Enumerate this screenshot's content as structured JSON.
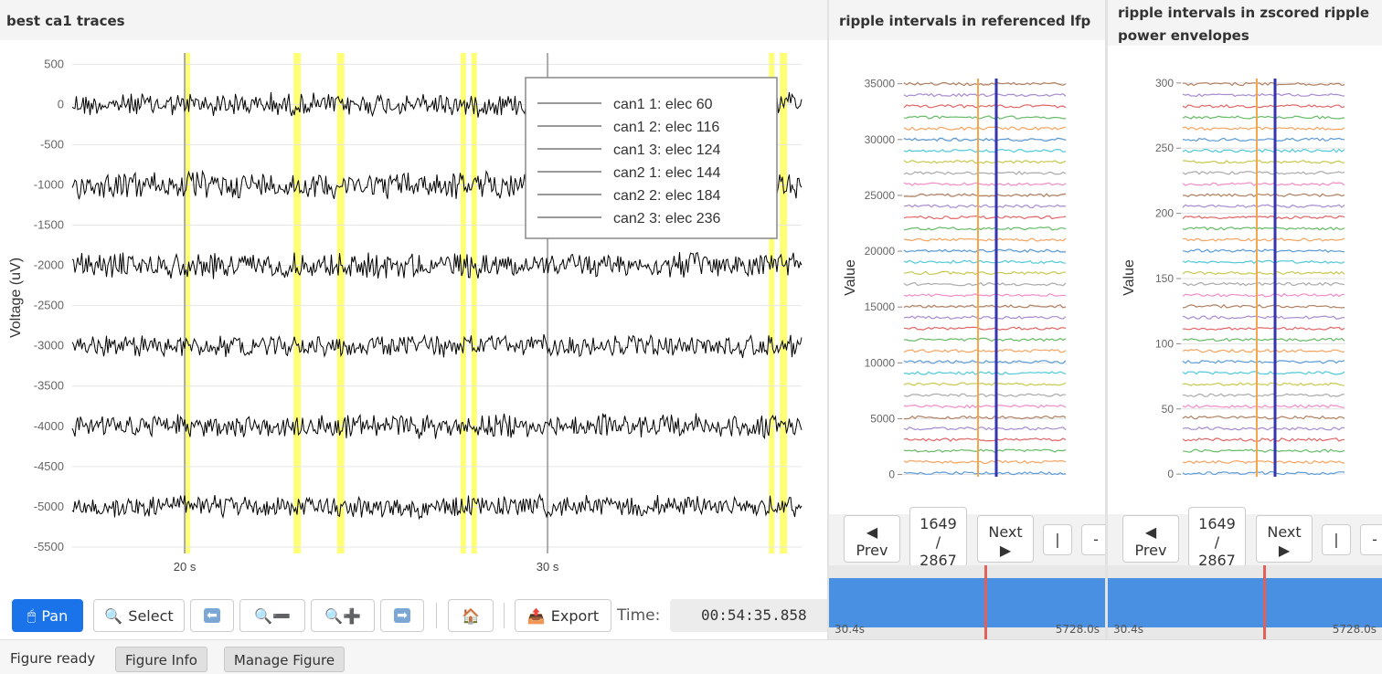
{
  "main_panel": {
    "title": "best ca1 traces",
    "chart_data": {
      "type": "line",
      "ylabel": "Voltage (uV)",
      "y_ticks": [
        500,
        0,
        -500,
        -1000,
        -1500,
        -2000,
        -2500,
        -3000,
        -3500,
        -4000,
        -4500,
        -5000,
        -5500
      ],
      "x_ticks": [
        {
          "value": 20,
          "label": "20 s"
        },
        {
          "value": 30,
          "label": "30 s"
        }
      ],
      "xlim": [
        16.9,
        37.0
      ],
      "ylim": [
        -5580,
        640
      ],
      "series": [
        {
          "name": "can1 1: elec 60",
          "offset": 0
        },
        {
          "name": "can1 2: elec 116",
          "offset": -1000
        },
        {
          "name": "can1 3: elec 124",
          "offset": -2000
        },
        {
          "name": "can2 1: elec 144",
          "offset": -3000
        },
        {
          "name": "can2 2: elec 184",
          "offset": -4000
        },
        {
          "name": "can2 3: elec 236",
          "offset": -5000
        }
      ],
      "highlight_intervals": [
        [
          20.0,
          20.15
        ],
        [
          23.0,
          23.2
        ],
        [
          24.2,
          24.4
        ],
        [
          27.6,
          27.7
        ],
        [
          27.9,
          28.0
        ],
        [
          36.1,
          36.2
        ],
        [
          36.4,
          36.6
        ]
      ],
      "cursor_lines": [
        20.0,
        30.0
      ],
      "legend_position": "top-right"
    }
  },
  "toolbar": {
    "pan_label": "Pan",
    "select_label": "Select",
    "export_label": "Export",
    "time_label": "Time:",
    "time_value": "00:54:35.858"
  },
  "statusbar": {
    "status_text": "Figure ready",
    "figure_info_label": "Figure Info",
    "manage_figure_label": "Manage Figure"
  },
  "ripple_lfp": {
    "title": "ripple intervals in referenced lfp",
    "chart_data": {
      "type": "line",
      "ylabel": "Value",
      "y_ticks": [
        35000,
        30000,
        25000,
        20000,
        15000,
        10000,
        5000,
        0
      ],
      "ylim": [
        -200,
        35300
      ],
      "trace_count": 36
    },
    "nav": {
      "prev_label": "Prev",
      "counter": "1649 / 2867",
      "next_label": "Next"
    },
    "timeline": {
      "start_label": "30.4s",
      "end_label": "5728.0s",
      "position": 0.297
    }
  },
  "ripple_zscored": {
    "title": "ripple intervals in zscored ripple power envelopes",
    "chart_data": {
      "type": "line",
      "ylabel": "Value",
      "y_ticks": [
        300,
        250,
        200,
        150,
        100,
        50,
        0
      ],
      "ylim": [
        -2,
        302
      ],
      "trace_count": 36
    },
    "nav": {
      "prev_label": "Prev",
      "counter": "1649 / 2867",
      "next_label": "Next"
    },
    "timeline": {
      "start_label": "30.4s",
      "end_label": "5728.0s",
      "position": 0.297
    }
  },
  "colors": {
    "highlight": "#ffff66",
    "accent": "#1a73e8",
    "timeline_bar": "#4a90e2",
    "timeline_marker": "#e0605a",
    "interval_start": "#f5a64a",
    "interval_end": "#3535b0"
  }
}
